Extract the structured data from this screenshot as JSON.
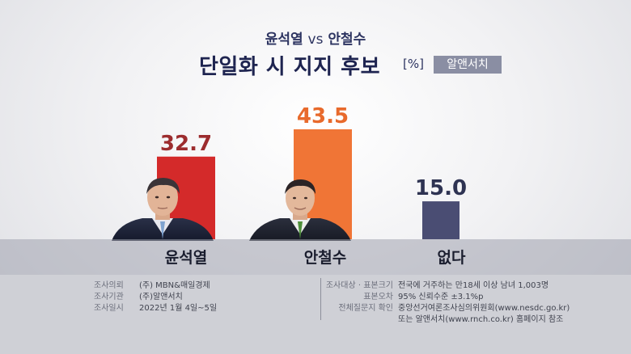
{
  "header": {
    "subtitle_left": "윤석열",
    "subtitle_vs": "vs",
    "subtitle_right": "안철수",
    "title": "단일화 시 지지 후보",
    "unit": "[%]",
    "source_badge": "알앤서치"
  },
  "chart_data": {
    "type": "bar",
    "categories": [
      "윤석열",
      "안철수",
      "없다"
    ],
    "values": [
      32.7,
      43.5,
      15.0
    ],
    "value_labels": [
      "32.7",
      "43.5",
      "15.0"
    ],
    "title": "단일화 시 지지 후보",
    "unit": "[%]",
    "colors": [
      "#d42a2a",
      "#f07536",
      "#4a4d73"
    ],
    "label_colors": [
      "#9c2c2e",
      "#e86a2c",
      "#2e3352"
    ],
    "ylim": [
      0,
      50
    ],
    "grid": false
  },
  "info": {
    "left": [
      {
        "key": "조사의뢰",
        "value": "(주) MBN&매일경제"
      },
      {
        "key": "조사기관",
        "value": "(주)알앤서치"
      },
      {
        "key": "조사일시",
        "value": "2022년 1월 4일~5일"
      }
    ],
    "right": [
      {
        "key": "조사대상 · 표본크기",
        "value": "전국에 거주하는 만18세 이상 남녀 1,003명"
      },
      {
        "key": "표본오차",
        "value": "95% 신뢰수준 ±3.1%p"
      },
      {
        "key": "전체질문지 확인",
        "value": "중앙선거여론조사심의위원회(www.nesdc.go.kr)"
      },
      {
        "key": "",
        "value": "또는 알앤서치(www.rnch.co.kr) 홈페이지 참조"
      }
    ]
  }
}
